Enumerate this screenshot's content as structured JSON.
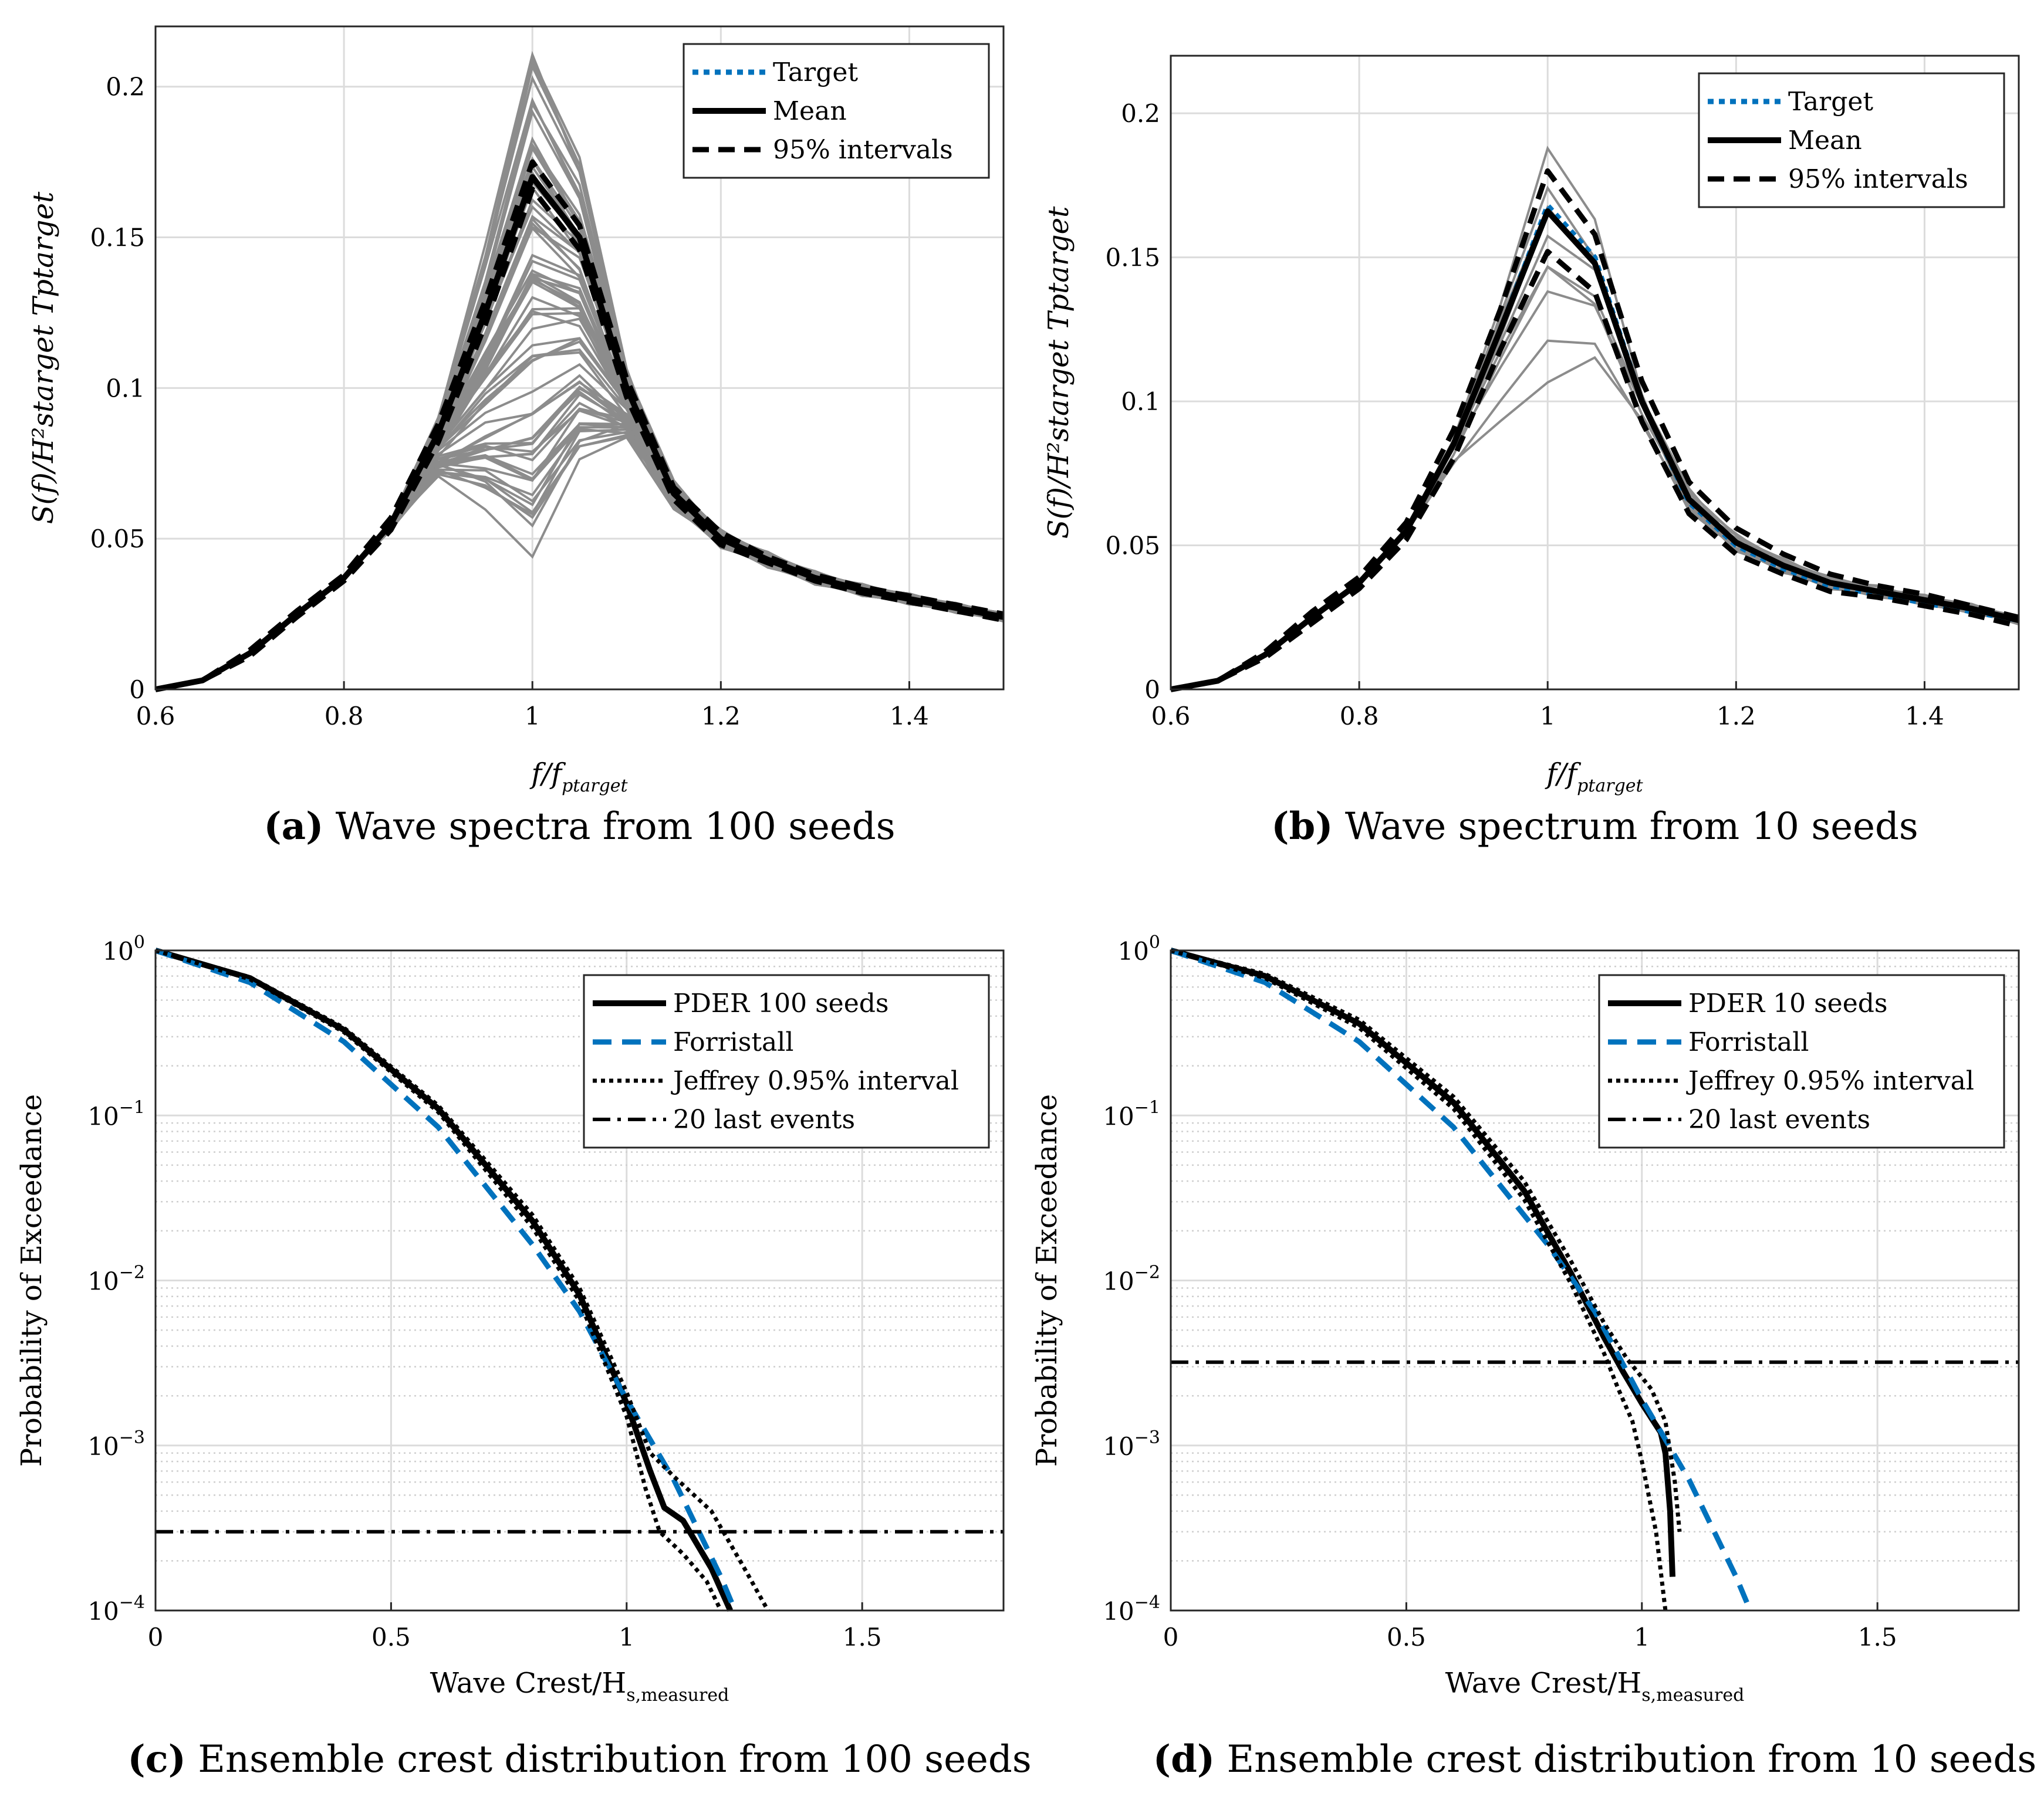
{
  "chart_data": [
    {
      "id": "a",
      "type": "line",
      "caption_letter": "(a)",
      "caption_text": "Wave spectra from 100 seeds",
      "xlabel_main": "f/f",
      "xlabel_sub": "ptarget",
      "ylabel": "S(f)/H²starget Tptarget",
      "xlim": [
        0.6,
        1.5
      ],
      "ylim": [
        0,
        0.22
      ],
      "x_ticks": [
        0.6,
        0.8,
        1.0,
        1.2,
        1.4
      ],
      "x_tick_labels": [
        "0.6",
        "0.8",
        "1",
        "1.2",
        "1.4"
      ],
      "y_ticks": [
        0,
        0.05,
        0.1,
        0.15,
        0.2
      ],
      "y_tick_labels": [
        "0",
        "0.05",
        "0.1",
        "0.15",
        "0.2"
      ],
      "grid": true,
      "legend_position": "top-right",
      "legend": [
        "Target",
        "Mean",
        "95% intervals"
      ],
      "seed_count": 100,
      "x": [
        0.6,
        0.65,
        0.7,
        0.75,
        0.8,
        0.85,
        0.9,
        0.95,
        1.0,
        1.05,
        1.1,
        1.15,
        1.2,
        1.25,
        1.3,
        1.35,
        1.4,
        1.45,
        1.5
      ],
      "series": [
        {
          "name": "Target",
          "style": "dotted-blue",
          "values": [
            0.0,
            0.003,
            0.012,
            0.025,
            0.037,
            0.055,
            0.085,
            0.125,
            0.17,
            0.15,
            0.1,
            0.065,
            0.05,
            0.043,
            0.037,
            0.033,
            0.03,
            0.027,
            0.024
          ]
        },
        {
          "name": "Mean",
          "style": "solid-black",
          "values": [
            0.0,
            0.003,
            0.012,
            0.025,
            0.037,
            0.055,
            0.085,
            0.125,
            0.17,
            0.15,
            0.1,
            0.065,
            0.05,
            0.043,
            0.037,
            0.033,
            0.03,
            0.027,
            0.024
          ]
        },
        {
          "name": "95% intervals (upper)",
          "style": "dashed-black",
          "values": [
            0.0,
            0.003,
            0.013,
            0.026,
            0.038,
            0.057,
            0.088,
            0.129,
            0.175,
            0.154,
            0.103,
            0.067,
            0.052,
            0.044,
            0.038,
            0.034,
            0.031,
            0.028,
            0.025
          ]
        },
        {
          "name": "95% intervals (lower)",
          "style": "dashed-black",
          "values": [
            0.0,
            0.003,
            0.011,
            0.024,
            0.036,
            0.053,
            0.082,
            0.121,
            0.166,
            0.146,
            0.097,
            0.063,
            0.048,
            0.042,
            0.036,
            0.032,
            0.029,
            0.026,
            0.023
          ]
        }
      ]
    },
    {
      "id": "b",
      "type": "line",
      "caption_letter": "(b)",
      "caption_text": "Wave spectrum from 10 seeds",
      "xlabel_main": "f/f",
      "xlabel_sub": "ptarget",
      "ylabel": "S(f)/H²starget Tptarget",
      "xlim": [
        0.6,
        1.5
      ],
      "ylim": [
        0,
        0.22
      ],
      "x_ticks": [
        0.6,
        0.8,
        1.0,
        1.2,
        1.4
      ],
      "x_tick_labels": [
        "0.6",
        "0.8",
        "1",
        "1.2",
        "1.4"
      ],
      "y_ticks": [
        0,
        0.05,
        0.1,
        0.15,
        0.2
      ],
      "y_tick_labels": [
        "0",
        "0.05",
        "0.1",
        "0.15",
        "0.2"
      ],
      "grid": true,
      "legend_position": "top-right",
      "legend": [
        "Target",
        "Mean",
        "95% intervals"
      ],
      "seed_count": 10,
      "x": [
        0.6,
        0.65,
        0.7,
        0.75,
        0.8,
        0.85,
        0.9,
        0.95,
        1.0,
        1.05,
        1.1,
        1.15,
        1.2,
        1.25,
        1.3,
        1.35,
        1.4,
        1.45,
        1.5
      ],
      "series": [
        {
          "name": "Target",
          "style": "dotted-blue",
          "values": [
            0.0,
            0.003,
            0.012,
            0.025,
            0.037,
            0.055,
            0.085,
            0.125,
            0.168,
            0.15,
            0.1,
            0.065,
            0.05,
            0.042,
            0.036,
            0.033,
            0.03,
            0.027,
            0.024
          ]
        },
        {
          "name": "Mean",
          "style": "solid-black",
          "values": [
            0.0,
            0.003,
            0.012,
            0.025,
            0.037,
            0.055,
            0.085,
            0.125,
            0.166,
            0.148,
            0.1,
            0.066,
            0.051,
            0.043,
            0.037,
            0.034,
            0.031,
            0.028,
            0.024
          ]
        },
        {
          "name": "95% intervals (upper)",
          "style": "dashed-black",
          "values": [
            0.0,
            0.003,
            0.013,
            0.027,
            0.039,
            0.058,
            0.09,
            0.132,
            0.18,
            0.158,
            0.107,
            0.072,
            0.056,
            0.047,
            0.04,
            0.036,
            0.033,
            0.029,
            0.025
          ]
        },
        {
          "name": "95% intervals (lower)",
          "style": "dashed-black",
          "values": [
            0.0,
            0.003,
            0.011,
            0.023,
            0.035,
            0.052,
            0.08,
            0.118,
            0.152,
            0.138,
            0.093,
            0.061,
            0.047,
            0.04,
            0.034,
            0.032,
            0.029,
            0.026,
            0.022
          ]
        }
      ]
    },
    {
      "id": "c",
      "type": "line",
      "y_scale": "log",
      "caption_letter": "(c)",
      "caption_text": "Ensemble crest distribution from 100 seeds",
      "xlabel_main": "Wave Crest/H",
      "xlabel_sub": "s,measured",
      "ylabel": "Probability of Exceedance",
      "xlim": [
        0,
        1.8
      ],
      "ylim": [
        0.0001,
        1
      ],
      "x_ticks": [
        0,
        0.5,
        1.0,
        1.5
      ],
      "x_tick_labels": [
        "0",
        "0.5",
        "1",
        "1.5"
      ],
      "y_tick_base": "10",
      "y_tick_exponents": [
        "0",
        "−1",
        "−2",
        "−3",
        "−4"
      ],
      "grid": true,
      "legend_position": "top-right",
      "legend": [
        "PDER 100 seeds",
        "Forristall",
        "Jeffrey 0.95% interval",
        "20 last events"
      ],
      "series": [
        {
          "name": "PDER 100 seeds",
          "style": "solid-black",
          "x": [
            0,
            0.2,
            0.4,
            0.6,
            0.8,
            0.9,
            1.0,
            1.05,
            1.08,
            1.12,
            1.18,
            1.22
          ],
          "values": [
            1.0,
            0.68,
            0.33,
            0.11,
            0.023,
            0.0082,
            0.0018,
            0.0007,
            0.00042,
            0.00035,
            0.00018,
            0.0001
          ]
        },
        {
          "name": "Forristall",
          "style": "dashed-blue",
          "x": [
            0,
            0.2,
            0.4,
            0.6,
            0.8,
            0.9,
            1.0,
            1.1,
            1.2,
            1.23
          ],
          "values": [
            1.0,
            0.64,
            0.28,
            0.085,
            0.0165,
            0.0065,
            0.0019,
            0.00062,
            0.00016,
            0.0001
          ]
        },
        {
          "name": "Jeffrey 0.95% interval (upper)",
          "style": "dotted-black",
          "x": [
            0,
            0.2,
            0.4,
            0.6,
            0.8,
            0.9,
            1.0,
            1.05,
            1.1,
            1.18,
            1.25,
            1.3
          ],
          "values": [
            1.0,
            0.69,
            0.34,
            0.115,
            0.025,
            0.009,
            0.0021,
            0.0009,
            0.00065,
            0.0004,
            0.00018,
            0.0001
          ]
        },
        {
          "name": "Jeffrey 0.95% interval (lower)",
          "style": "dotted-black",
          "x": [
            0,
            0.2,
            0.4,
            0.6,
            0.8,
            0.9,
            1.0,
            1.04,
            1.07,
            1.12,
            1.17,
            1.2
          ],
          "values": [
            1.0,
            0.67,
            0.32,
            0.105,
            0.021,
            0.0075,
            0.0015,
            0.00055,
            0.0003,
            0.00022,
            0.00015,
            0.0001
          ]
        },
        {
          "name": "20 last events",
          "style": "dashdot-black",
          "x": [
            0,
            1.8
          ],
          "values": [
            0.0003,
            0.0003
          ]
        }
      ]
    },
    {
      "id": "d",
      "type": "line",
      "y_scale": "log",
      "caption_letter": "(d)",
      "caption_text": "Ensemble crest distribution from 10 seeds",
      "xlabel_main": "Wave Crest/H",
      "xlabel_sub": "s,measured",
      "ylabel": "Probability of Exceedance",
      "xlim": [
        0,
        1.8
      ],
      "ylim": [
        0.0001,
        1
      ],
      "x_ticks": [
        0,
        0.5,
        1.0,
        1.5
      ],
      "x_tick_labels": [
        "0",
        "0.5",
        "1",
        "1.5"
      ],
      "y_tick_base": "10",
      "y_tick_exponents": [
        "0",
        "−1",
        "−2",
        "−3",
        "−4"
      ],
      "grid": true,
      "legend_position": "top-right",
      "legend": [
        "PDER 10 seeds",
        "Forristall",
        "Jeffrey 0.95% interval",
        "20 last events"
      ],
      "series": [
        {
          "name": "PDER 10 seeds",
          "style": "solid-black",
          "x": [
            0,
            0.2,
            0.4,
            0.6,
            0.75,
            0.85,
            0.92,
            0.96,
            1.0,
            1.04,
            1.05,
            1.06,
            1.065
          ],
          "values": [
            1.0,
            0.7,
            0.36,
            0.12,
            0.035,
            0.011,
            0.0045,
            0.0028,
            0.0018,
            0.0012,
            0.0009,
            0.0004,
            0.00016
          ]
        },
        {
          "name": "Forristall",
          "style": "dashed-blue",
          "x": [
            0,
            0.2,
            0.4,
            0.6,
            0.8,
            0.9,
            1.0,
            1.1,
            1.2,
            1.23
          ],
          "values": [
            1.0,
            0.64,
            0.28,
            0.085,
            0.0165,
            0.0065,
            0.0019,
            0.00062,
            0.00016,
            0.0001
          ]
        },
        {
          "name": "Jeffrey 0.95% interval (upper)",
          "style": "dotted-black",
          "x": [
            0,
            0.2,
            0.4,
            0.6,
            0.75,
            0.85,
            0.92,
            0.97,
            1.02,
            1.05,
            1.07,
            1.08
          ],
          "values": [
            1.0,
            0.72,
            0.38,
            0.13,
            0.04,
            0.013,
            0.0055,
            0.0033,
            0.0022,
            0.0014,
            0.0006,
            0.0003
          ]
        },
        {
          "name": "Jeffrey 0.95% interval (lower)",
          "style": "dotted-black",
          "x": [
            0,
            0.2,
            0.4,
            0.6,
            0.75,
            0.85,
            0.92,
            0.95,
            0.98,
            1.0,
            1.03,
            1.05
          ],
          "values": [
            1.0,
            0.68,
            0.34,
            0.11,
            0.031,
            0.0095,
            0.0036,
            0.0022,
            0.0014,
            0.0008,
            0.0003,
            0.0001
          ]
        },
        {
          "name": "20 last events",
          "style": "dashdot-black",
          "x": [
            0,
            1.8
          ],
          "values": [
            0.0032,
            0.0032
          ]
        }
      ]
    }
  ]
}
